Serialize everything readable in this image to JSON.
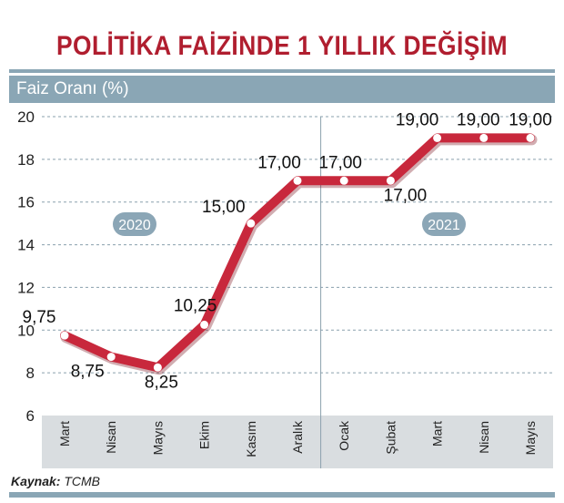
{
  "title": "POLİTİKA FAİZİNDE 1 YILLIK DEĞİŞİM",
  "source_label": "Kaynak:",
  "source_value": "TCMB",
  "colors": {
    "title": "#b01e2f",
    "line": "#c8283c",
    "header": "#8aa6b5",
    "axis_bg": "#d9dde0",
    "badge": "#8ba6b6"
  },
  "chart_data": {
    "type": "line",
    "ylabel": "Faiz Oranı (%)",
    "ylim": [
      6,
      20
    ],
    "yticks": [
      "6",
      "8",
      "10",
      "12",
      "14",
      "16",
      "18",
      "20"
    ],
    "grid": true,
    "categories": [
      "Mart",
      "Nisan",
      "Mayıs",
      "Ekim",
      "Kasım",
      "Aralık",
      "Ocak",
      "Şubat",
      "Mart",
      "Nisan",
      "Mayıs"
    ],
    "series": [
      {
        "values": [
          9.75,
          8.75,
          8.25,
          10.25,
          15.0,
          17.0,
          17.0,
          17.0,
          19.0,
          19.0,
          19.0
        ]
      }
    ],
    "data_labels": [
      "9,75",
      "8,75",
      "8,25",
      "10,25",
      "15,00",
      "17,00",
      "17,00",
      "17,00",
      "19,00",
      "19,00",
      "19,00"
    ],
    "year_badges": [
      "2020",
      "2021"
    ]
  }
}
